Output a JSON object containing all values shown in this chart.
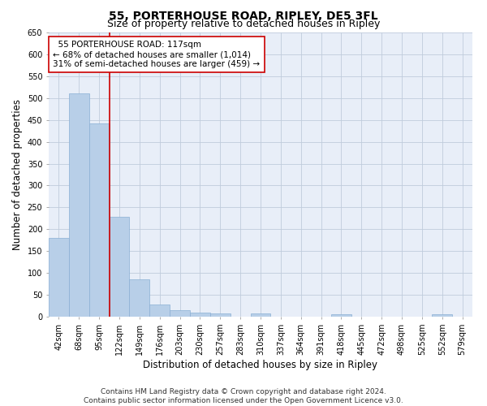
{
  "title": "55, PORTERHOUSE ROAD, RIPLEY, DE5 3FL",
  "subtitle": "Size of property relative to detached houses in Ripley",
  "xlabel": "Distribution of detached houses by size in Ripley",
  "ylabel": "Number of detached properties",
  "categories": [
    "42sqm",
    "68sqm",
    "95sqm",
    "122sqm",
    "149sqm",
    "176sqm",
    "203sqm",
    "230sqm",
    "257sqm",
    "283sqm",
    "310sqm",
    "337sqm",
    "364sqm",
    "391sqm",
    "418sqm",
    "445sqm",
    "472sqm",
    "498sqm",
    "525sqm",
    "552sqm",
    "579sqm"
  ],
  "values": [
    180,
    510,
    442,
    228,
    85,
    28,
    15,
    10,
    7,
    0,
    8,
    0,
    0,
    0,
    5,
    0,
    0,
    0,
    0,
    5,
    0
  ],
  "bar_color": "#b8cfe8",
  "bar_edge_color": "#8aafd4",
  "vline_color": "#cc0000",
  "annotation_text": "  55 PORTERHOUSE ROAD: 117sqm\n← 68% of detached houses are smaller (1,014)\n31% of semi-detached houses are larger (459) →",
  "annotation_box_color": "#ffffff",
  "annotation_box_edge": "#cc0000",
  "ylim": [
    0,
    650
  ],
  "yticks": [
    0,
    50,
    100,
    150,
    200,
    250,
    300,
    350,
    400,
    450,
    500,
    550,
    600,
    650
  ],
  "footer_line1": "Contains HM Land Registry data © Crown copyright and database right 2024.",
  "footer_line2": "Contains public sector information licensed under the Open Government Licence v3.0.",
  "background_color": "#e8eef8",
  "grid_color": "#c0ccdc",
  "title_fontsize": 10,
  "subtitle_fontsize": 9,
  "axis_label_fontsize": 8.5,
  "tick_fontsize": 7,
  "footer_fontsize": 6.5,
  "annotation_fontsize": 7.5
}
